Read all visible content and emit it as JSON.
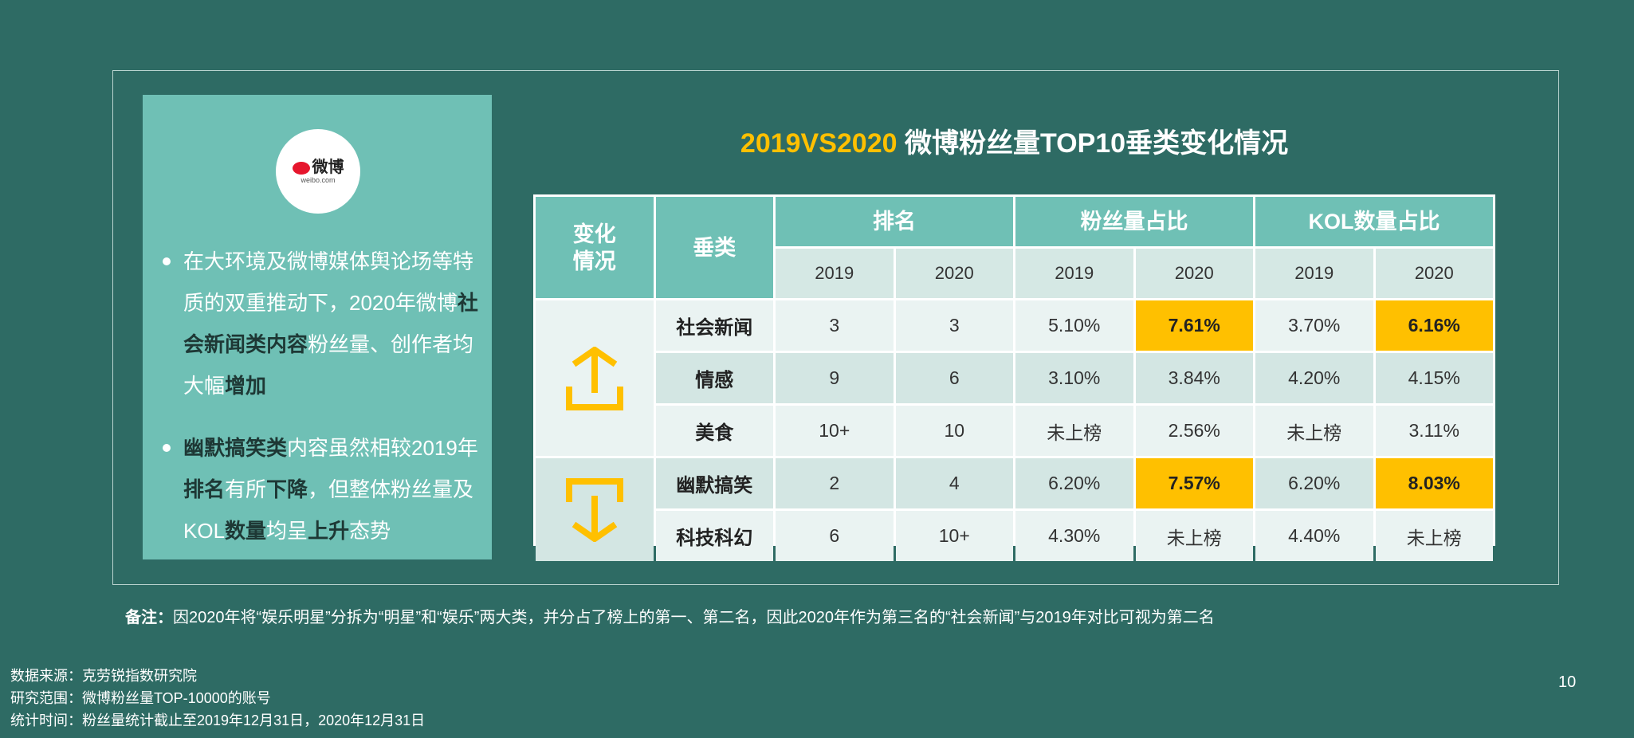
{
  "logo": {
    "name": "微博",
    "domain": "weibo.com"
  },
  "bullets": [
    {
      "s0": "在大环境及微博媒体舆论场等特质的双重推动下，2020年微博",
      "s1": "社会新闻类内容",
      "s2": "粉丝量、创作者均大幅",
      "s3": "增加"
    },
    {
      "s0": "幽默搞笑类",
      "s1": "内容虽然相较2019年",
      "s2": "排名",
      "s3": "有所",
      "s4": "下降",
      "s5": "，但整体粉丝量及KOL",
      "s6": "数量",
      "s7": "均呈",
      "s8": "上升",
      "s9": "态势"
    }
  ],
  "title": {
    "highlight": "2019VS2020",
    "rest": " 微博粉丝量TOP10垂类变化情况"
  },
  "table": {
    "headers": {
      "change": "变化情况",
      "category": "垂类",
      "rank": "排名",
      "fans": "粉丝量占比",
      "kol": "KOL数量占比"
    },
    "years": [
      "2019",
      "2020",
      "2019",
      "2020",
      "2019",
      "2020"
    ],
    "rows": [
      {
        "category": "社会新闻",
        "values": [
          "3",
          "3",
          "5.10%",
          "7.61%",
          "3.70%",
          "6.16%"
        ]
      },
      {
        "category": "情感",
        "values": [
          "9",
          "6",
          "3.10%",
          "3.84%",
          "4.20%",
          "4.15%"
        ]
      },
      {
        "category": "美食",
        "values": [
          "10+",
          "10",
          "未上榜",
          "2.56%",
          "未上榜",
          "3.11%"
        ]
      },
      {
        "category": "幽默搞笑",
        "values": [
          "2",
          "4",
          "6.20%",
          "7.57%",
          "6.20%",
          "8.03%"
        ]
      },
      {
        "category": "科技科幻",
        "values": [
          "6",
          "10+",
          "4.30%",
          "未上榜",
          "4.40%",
          "未上榜"
        ]
      }
    ],
    "colors": {
      "header": "#6fc0b5",
      "highlight": "#ffc000",
      "arrow": "#ffc000"
    }
  },
  "note": {
    "label": "备注：",
    "text": "因2020年将“娱乐明星”分拆为“明星”和“娱乐”两大类，并分占了榜上的第一、第二名，因此2020年作为第三名的“社会新闻”与2019年对比可视为第二名"
  },
  "footer": [
    "数据来源：克劳锐指数研究院",
    "研究范围：微博粉丝量TOP-10000的账号",
    "统计时间：粉丝量统计截止至2019年12月31日，2020年12月31日"
  ],
  "page_number": "10"
}
